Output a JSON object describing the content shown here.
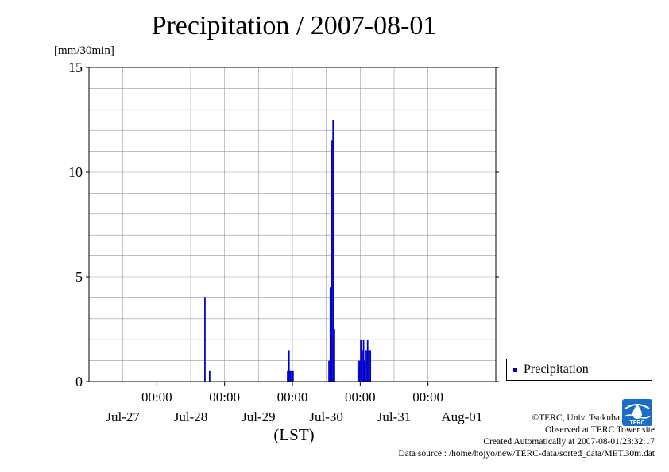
{
  "title": "Precipitation / 2007-08-01",
  "unit_label": "[mm/30min]",
  "x_axis_label": "(LST)",
  "legend": {
    "label": "Precipitation"
  },
  "credits": {
    "copyright": "©TERC, Univ. Tsukuba",
    "observed": "Observed at TERC Tower site",
    "created": "Created Automatically at 2007-08-01/23:32:17",
    "source": "Data source : /home/hojyo/new/TERC-data/sorted_data/MET.30m.dat"
  },
  "logo_text": "TERC",
  "colors": {
    "series": "#0000cc",
    "grid": "#999999",
    "logo": "#1a6fc4"
  },
  "chart_data": {
    "type": "bar",
    "title": "Precipitation / 2007-08-01",
    "ylabel": "[mm/30min]",
    "xlabel": "(LST)",
    "ylim": [
      0,
      15
    ],
    "yticks": [
      0,
      5,
      10,
      15
    ],
    "xlim": [
      -1,
      5.0
    ],
    "x_unit": "days since Jul-27 00:00",
    "time_tick_labels": [
      "00:00",
      "00:00",
      "00:00",
      "00:00",
      "00:00"
    ],
    "date_tick_labels": [
      "Jul-27",
      "Jul-28",
      "Jul-29",
      "Jul-30",
      "Jul-31",
      "Aug-01"
    ],
    "grid": true,
    "legend_position": "right",
    "series": [
      {
        "name": "Precipitation",
        "points": [
          {
            "x": -0.45,
            "y": 0.0
          },
          {
            "x": 0.71,
            "y": 4.0
          },
          {
            "x": 0.78,
            "y": 0.5
          },
          {
            "x": 1.93,
            "y": 0.5
          },
          {
            "x": 1.95,
            "y": 1.5
          },
          {
            "x": 1.97,
            "y": 0.5
          },
          {
            "x": 1.99,
            "y": 0.5
          },
          {
            "x": 2.01,
            "y": 0.5
          },
          {
            "x": 2.54,
            "y": 1.0
          },
          {
            "x": 2.56,
            "y": 4.5
          },
          {
            "x": 2.58,
            "y": 11.5
          },
          {
            "x": 2.6,
            "y": 12.5
          },
          {
            "x": 2.62,
            "y": 2.5
          },
          {
            "x": 2.97,
            "y": 1.0
          },
          {
            "x": 2.99,
            "y": 1.0
          },
          {
            "x": 3.01,
            "y": 2.0
          },
          {
            "x": 3.03,
            "y": 1.5
          },
          {
            "x": 3.05,
            "y": 2.0
          },
          {
            "x": 3.07,
            "y": 1.0
          },
          {
            "x": 3.09,
            "y": 1.5
          },
          {
            "x": 3.11,
            "y": 2.0
          },
          {
            "x": 3.13,
            "y": 1.5
          },
          {
            "x": 3.15,
            "y": 1.5
          }
        ]
      }
    ]
  }
}
